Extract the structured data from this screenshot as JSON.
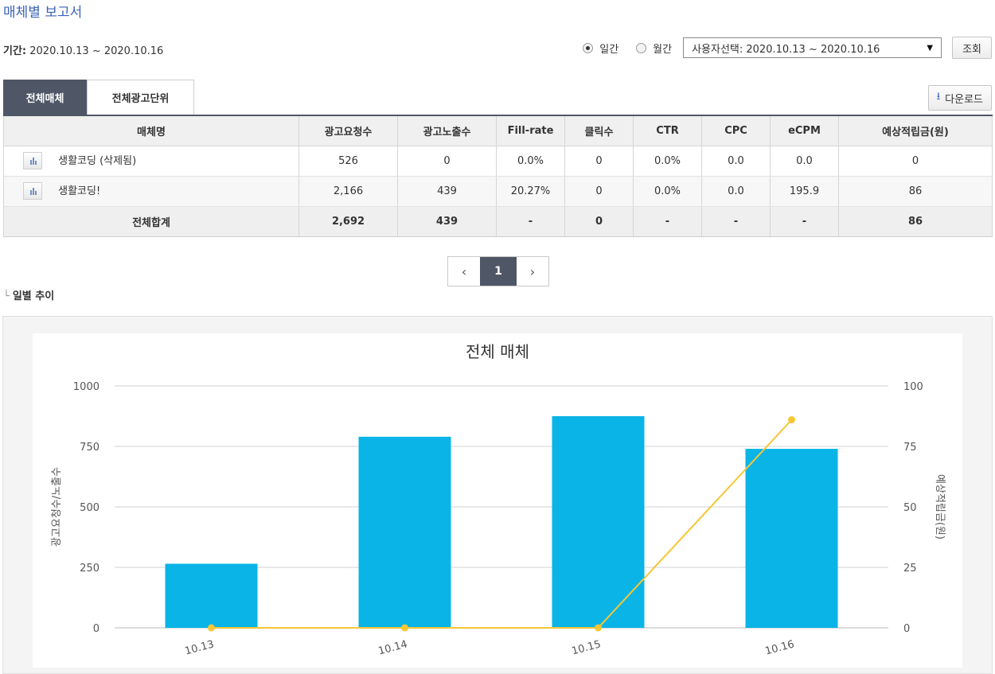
{
  "page_title": "매체별 보고서",
  "period": {
    "label": "기간:",
    "value": "2020.10.13 ~ 2020.10.16"
  },
  "filters": {
    "daily_label": "일간",
    "monthly_label": "월간",
    "selected": "daily",
    "range_select": "사용자선택: 2020.10.13 ~ 2020.10.16",
    "search_label": "조회"
  },
  "tabs": [
    {
      "label": "전체매체",
      "active": true
    },
    {
      "label": "전체광고단위",
      "active": false
    }
  ],
  "download_label": "다운로드",
  "table": {
    "headers": [
      "매체명",
      "광고요청수",
      "광고노출수",
      "Fill-rate",
      "클릭수",
      "CTR",
      "CPC",
      "eCPM",
      "예상적립금(원)"
    ],
    "rows": [
      [
        "생활코딩 (삭제됨)",
        "526",
        "0",
        "0.0%",
        "0",
        "0.0%",
        "0.0",
        "0.0",
        "0"
      ],
      [
        "생활코딩!",
        "2,166",
        "439",
        "20.27%",
        "0",
        "0.0%",
        "0.0",
        "195.9",
        "86"
      ]
    ],
    "total": [
      "전체합계",
      "2,692",
      "439",
      "-",
      "0",
      "-",
      "-",
      "-",
      "86"
    ]
  },
  "pagination": {
    "prev": "‹",
    "current": "1",
    "next": "›"
  },
  "section_title": "일별 추이",
  "colors": {
    "bar": "#0ab4e6",
    "line": "#f6c736",
    "accent": "#4f5767",
    "title": "#3b63b8"
  },
  "chart_data": {
    "type": "bar",
    "title": "전체 매체",
    "categories": [
      "10.13",
      "10.14",
      "10.15",
      "10.16"
    ],
    "ylabel": "광고요청수/노출수",
    "y2label": "예상적립금(원)",
    "ylim": [
      0,
      1000
    ],
    "y2lim": [
      0,
      100
    ],
    "yticks": [
      0,
      250,
      500,
      750,
      1000
    ],
    "y2ticks": [
      0,
      25,
      50,
      75,
      100
    ],
    "grid": true,
    "series": [
      {
        "values": [
          265,
          790,
          875,
          740
        ],
        "kind": "bar"
      },
      {
        "values": [
          0,
          0,
          0,
          86
        ],
        "kind": "line",
        "axis": "right"
      }
    ]
  }
}
